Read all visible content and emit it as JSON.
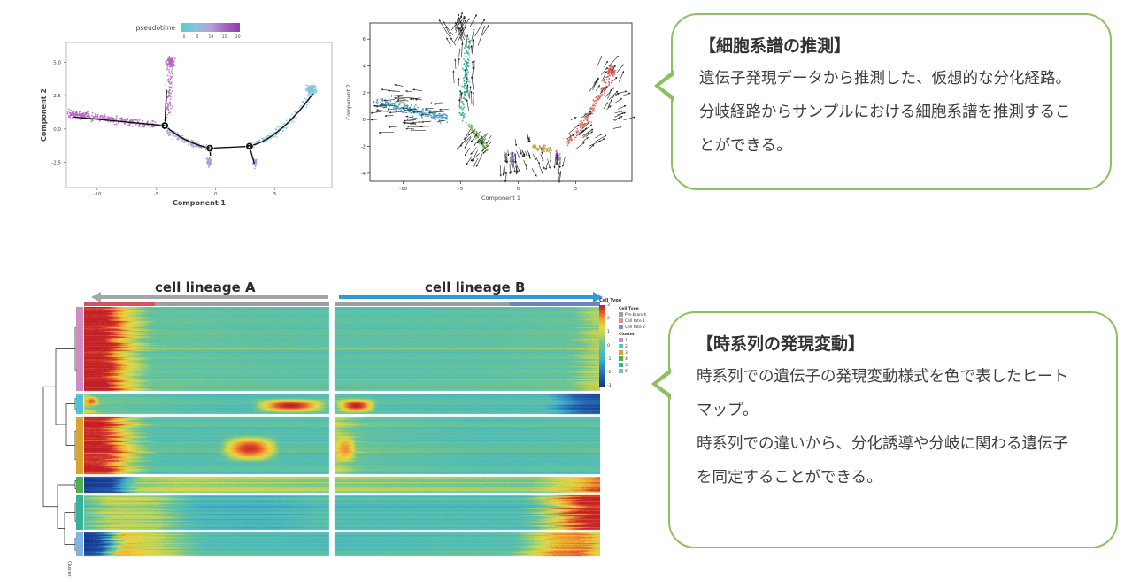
{
  "page": {
    "bg": "#ffffff"
  },
  "chart_data": [
    {
      "type": "scatter",
      "name": "pseudotime-trajectory",
      "xlabel": "Component 1",
      "ylabel": "Component 2",
      "x_ticks": [
        -10,
        -5,
        0,
        5
      ],
      "y_ticks": [
        "5.0",
        "2.5",
        "0.0",
        "-2.5"
      ],
      "y_tick_vals": [
        5.0,
        2.5,
        0.0,
        -2.5
      ],
      "x_range": [
        -12.6,
        9.8
      ],
      "y_range": [
        -4.4,
        6.5
      ],
      "legend": {
        "title": "pseudotime",
        "ticks": [
          "0",
          "5",
          "10",
          "15",
          "20"
        ],
        "colors": [
          "#5ec9d4",
          "#8cc3d9",
          "#b2a3d6",
          "#a364c0",
          "#8e3fae"
        ]
      },
      "clusters": [
        {
          "name": "early-purple-band",
          "color": "#b665c2",
          "kind": "band",
          "from": [
            -12.3,
            1.15
          ],
          "to": [
            -5.1,
            0.3
          ],
          "spread": 0.42,
          "n": 300,
          "bias": 1.4
        },
        {
          "name": "purple-upper-arm",
          "color": "#b665c2",
          "kind": "band",
          "from": [
            -4.05,
            0.9
          ],
          "to": [
            -3.75,
            4.6
          ],
          "spread": 0.4,
          "n": 80,
          "bias": 0.8
        },
        {
          "name": "purple-top-blob",
          "color": "#b665c2",
          "kind": "blob",
          "c": [
            -3.8,
            5.05
          ],
          "sx": 0.5,
          "sy": 0.55,
          "n": 90
        },
        {
          "name": "lavender-curve",
          "color": "#a9a0da",
          "kind": "curve",
          "pts": [
            [
              -4.1,
              -0.15
            ],
            [
              -2.3,
              -1.05
            ],
            [
              -0.5,
              -1.5
            ]
          ],
          "spread": 0.35,
          "n": 150
        },
        {
          "name": "lavender-lower-tuft",
          "color": "#a9a0da",
          "kind": "blob",
          "c": [
            -0.55,
            -2.45
          ],
          "sx": 0.3,
          "sy": 0.55,
          "n": 55
        },
        {
          "name": "lavender-right-tuft",
          "color": "#a9a0da",
          "kind": "blob",
          "c": [
            3.3,
            -2.5
          ],
          "sx": 0.25,
          "sy": 0.5,
          "n": 45
        },
        {
          "name": "cyan-curve",
          "color": "#7fc6dc",
          "kind": "curve",
          "pts": [
            [
              3.0,
              -1.25
            ],
            [
              5.6,
              -0.55
            ],
            [
              7.8,
              2.35
            ]
          ],
          "spread": 0.4,
          "n": 140
        },
        {
          "name": "cyan-top-blob",
          "color": "#7fc6dc",
          "kind": "blob",
          "c": [
            8.05,
            2.95
          ],
          "sx": 0.55,
          "sy": 0.45,
          "n": 200
        }
      ],
      "trajectory": {
        "color": "#111111",
        "segments": [
          {
            "type": "L",
            "pts": [
              [
                -12.0,
                0.9
              ],
              [
                -4.3,
                0.25
              ]
            ]
          },
          {
            "type": "L",
            "pts": [
              [
                -4.3,
                0.25
              ],
              [
                -4.15,
                2.95
              ]
            ]
          },
          {
            "type": "Q",
            "pts": [
              [
                -4.3,
                0.25
              ],
              [
                -2.6,
                -1.05
              ],
              [
                -0.5,
                -1.45
              ]
            ]
          },
          {
            "type": "L",
            "pts": [
              [
                -0.5,
                -1.45
              ],
              [
                2.85,
                -1.3
              ]
            ]
          },
          {
            "type": "Q",
            "pts": [
              [
                2.85,
                -1.3
              ],
              [
                5.4,
                -0.75
              ],
              [
                8.2,
                2.65
              ]
            ]
          },
          {
            "type": "L",
            "pts": [
              [
                2.85,
                -1.3
              ],
              [
                3.25,
                -2.6
              ]
            ]
          },
          {
            "type": "L",
            "pts": [
              [
                -0.5,
                -1.45
              ],
              [
                -0.45,
                -2.0
              ]
            ]
          }
        ]
      },
      "branch_points": [
        {
          "label": "1",
          "x": -4.3,
          "y": 0.25
        },
        {
          "label": "3",
          "x": -0.5,
          "y": -1.45
        },
        {
          "label": "2",
          "x": 2.85,
          "y": -1.3
        }
      ]
    },
    {
      "type": "scatter",
      "name": "rna-velocity",
      "xlabel": "Component 1",
      "ylabel": "Component 2",
      "x_ticks": [
        -10,
        -5,
        0,
        5
      ],
      "y_ticks": [
        6,
        4,
        2,
        0,
        -2,
        -4
      ],
      "x_range": [
        -12.9,
        9.9
      ],
      "y_range": [
        -4.6,
        7.2
      ],
      "clusters": [
        {
          "name": "blue",
          "color": "#3d9bc9",
          "kind": "band",
          "from": [
            -12.4,
            1.35
          ],
          "to": [
            -6.2,
            0.1
          ],
          "spread": 0.5,
          "n": 260,
          "bias": 1
        },
        {
          "name": "teal-arm",
          "color": "#27a88f",
          "kind": "band",
          "from": [
            -4.9,
            0.1
          ],
          "to": [
            -4.3,
            5.9
          ],
          "spread": 0.38,
          "n": 130,
          "bias": 1
        },
        {
          "name": "green",
          "color": "#5aa83f",
          "kind": "band",
          "from": [
            -4.3,
            -0.4
          ],
          "to": [
            -2.7,
            -2.2
          ],
          "spread": 0.33,
          "n": 90,
          "bias": 1
        },
        {
          "name": "purple",
          "color": "#8d7cc9",
          "kind": "blob",
          "c": [
            -0.55,
            -2.85
          ],
          "sx": 0.3,
          "sy": 0.6,
          "n": 55
        },
        {
          "name": "mustard",
          "color": "#c79a38",
          "kind": "band",
          "from": [
            1.3,
            -2.0
          ],
          "to": [
            2.9,
            -2.25
          ],
          "spread": 0.3,
          "n": 70,
          "bias": 1
        },
        {
          "name": "magenta",
          "color": "#c25cab",
          "kind": "blob",
          "c": [
            3.45,
            -2.75
          ],
          "sx": 0.28,
          "sy": 0.65,
          "n": 55
        },
        {
          "name": "red-curve",
          "color": "#d75f55",
          "kind": "curve",
          "pts": [
            [
              4.3,
              -1.75
            ],
            [
              6.3,
              0.1
            ],
            [
              7.9,
              3.2
            ]
          ],
          "spread": 0.45,
          "n": 170
        },
        {
          "name": "red-blob",
          "color": "#d75f55",
          "kind": "blob",
          "c": [
            8.1,
            3.6
          ],
          "sx": 0.5,
          "sy": 0.5,
          "n": 120
        }
      ],
      "arrow_fields": [
        {
          "cx": -9.3,
          "cy": 0.7,
          "rx": 3.3,
          "ry": 1.9,
          "angle": 178,
          "spread": 20,
          "n": 55,
          "len": 1.0
        },
        {
          "cx": -4.6,
          "cy": 3.0,
          "rx": 1.1,
          "ry": 2.9,
          "angle": 92,
          "spread": 18,
          "n": 26,
          "len": 0.9
        },
        {
          "cx": -4.4,
          "cy": 6.2,
          "rx": 1.7,
          "ry": 0.9,
          "angle": 65,
          "spread": 30,
          "n": 14,
          "len": 1.4
        },
        {
          "cx": -5.3,
          "cy": 6.1,
          "rx": 1.1,
          "ry": 0.8,
          "angle": 115,
          "spread": 25,
          "n": 10,
          "len": 1.3
        },
        {
          "cx": -3.4,
          "cy": -1.6,
          "rx": 1.4,
          "ry": 1.3,
          "angle": 232,
          "spread": 25,
          "n": 22,
          "len": 0.9
        },
        {
          "cx": -0.6,
          "cy": -3.1,
          "rx": 1.1,
          "ry": 0.9,
          "angle": 268,
          "spread": 25,
          "n": 14,
          "len": 0.8
        },
        {
          "cx": 1.0,
          "cy": -2.9,
          "rx": 1.7,
          "ry": 0.9,
          "angle": 288,
          "spread": 25,
          "n": 16,
          "len": 0.8
        },
        {
          "cx": 3.4,
          "cy": -3.1,
          "rx": 0.9,
          "ry": 0.9,
          "angle": 262,
          "spread": 25,
          "n": 12,
          "len": 0.9
        },
        {
          "cx": 5.6,
          "cy": -0.9,
          "rx": 1.5,
          "ry": 1.5,
          "angle": 38,
          "spread": 25,
          "n": 20,
          "len": 0.9
        },
        {
          "cx": 7.5,
          "cy": 2.4,
          "rx": 1.4,
          "ry": 1.8,
          "angle": 55,
          "spread": 28,
          "n": 24,
          "len": 0.9
        },
        {
          "cx": 8.7,
          "cy": 0.6,
          "rx": 0.9,
          "ry": 1.6,
          "angle": 22,
          "spread": 25,
          "n": 12,
          "len": 0.9
        },
        {
          "cx": 0.4,
          "cy": -1.7,
          "rx": 2.6,
          "ry": 0.7,
          "angle": 290,
          "spread": 30,
          "n": 10,
          "len": 0.6
        }
      ]
    },
    {
      "type": "heatmap",
      "name": "branched-expression-heatmap",
      "lineage_a_label": "cell lineage A",
      "lineage_b_label": "cell lineage B",
      "lineage_a_color": "#a6a6a6",
      "lineage_b_color": "#2e9bd6",
      "annotation": {
        "left": [
          {
            "color": "#d8515e",
            "w": 0.29
          },
          {
            "color": "#9e9e9e",
            "w": 0.71
          }
        ],
        "right": [
          {
            "color": "#9e9e9e",
            "w": 0.66
          },
          {
            "color": "#6d83bb",
            "w": 0.34
          }
        ]
      },
      "cluster_axis_label": "Cluster",
      "scale_ticks": [
        "3",
        "2",
        "1",
        "0",
        "-1",
        "-2",
        "-3"
      ],
      "legend_title": "Cell Type",
      "cell_type_legend": {
        "title": "Cell Type",
        "items": [
          {
            "label": "Pre-branch",
            "color": "#9e9e9e"
          },
          {
            "label": "Cell fate 1",
            "color": "#e98f93"
          },
          {
            "label": "Cell fate 2",
            "color": "#7c8fc9"
          }
        ]
      },
      "cluster_legend": {
        "title": "Cluster",
        "items": [
          {
            "label": "1",
            "color": "#cd8fc2"
          },
          {
            "label": "2",
            "color": "#4fc3d9"
          },
          {
            "label": "3",
            "color": "#d9a52f"
          },
          {
            "label": "4",
            "color": "#4caf50"
          },
          {
            "label": "5",
            "color": "#35b39a"
          },
          {
            "label": "6",
            "color": "#7fb3e0"
          }
        ]
      },
      "colormap": [
        [
          -3,
          "#16388f"
        ],
        [
          -2,
          "#2a6fb6"
        ],
        [
          -1,
          "#3fb0c9"
        ],
        [
          -0.4,
          "#55bfb0"
        ],
        [
          0.2,
          "#6ec493"
        ],
        [
          0.8,
          "#b8d45c"
        ],
        [
          1.4,
          "#e8d83f"
        ],
        [
          2.0,
          "#f2a333"
        ],
        [
          2.5,
          "#e2572e"
        ],
        [
          3,
          "#c21f28"
        ]
      ],
      "blocks": [
        {
          "h": 95,
          "cluster_color": "#cd8fc2",
          "amp": 0.32,
          "jx": 0.04,
          "left": [
            [
              0,
              3
            ],
            [
              0.1,
              3
            ],
            [
              0.17,
              1.4
            ],
            [
              0.27,
              0
            ],
            [
              1,
              -0.2
            ]
          ],
          "right": [
            [
              0,
              -0.2
            ],
            [
              0.55,
              -0.15
            ],
            [
              0.9,
              0
            ],
            [
              0.97,
              0.7
            ],
            [
              1,
              0.8
            ]
          ],
          "features": []
        },
        {
          "h": 23,
          "cluster_color": "#4fc3d9",
          "amp": 0.4,
          "jx": 0.03,
          "left": [
            [
              0,
              1.2
            ],
            [
              0.05,
              0
            ],
            [
              0.6,
              -0.5
            ],
            [
              1,
              -0.3
            ]
          ],
          "right": [
            [
              0,
              0
            ],
            [
              0.2,
              -0.4
            ],
            [
              0.8,
              -0.5
            ],
            [
              0.92,
              -2.3
            ],
            [
              1,
              -2.6
            ]
          ],
          "features": [
            {
              "x0": 0.68,
              "x1": 1.0,
              "v": 3.2,
              "r0": 0.2,
              "r1": 0.95,
              "side": "left"
            },
            {
              "x0": 0.0,
              "x1": 0.16,
              "v": 3.2,
              "r0": 0.2,
              "r1": 0.95,
              "side": "right"
            },
            {
              "x0": 0.0,
              "x1": 0.06,
              "v": 2.6,
              "r0": 0.1,
              "r1": 0.6,
              "side": "left"
            }
          ]
        },
        {
          "h": 65,
          "cluster_color": "#d9a52f",
          "amp": 0.35,
          "jx": 0.04,
          "left": [
            [
              0,
              3
            ],
            [
              0.09,
              3
            ],
            [
              0.17,
              1.2
            ],
            [
              0.27,
              -0.2
            ],
            [
              1,
              -0.25
            ]
          ],
          "right": [
            [
              0,
              1.0
            ],
            [
              0.1,
              0
            ],
            [
              0.6,
              -0.3
            ],
            [
              1,
              -0.2
            ]
          ],
          "features": [
            {
              "x0": 0.55,
              "x1": 0.8,
              "v": 3,
              "r0": 0.3,
              "r1": 0.8,
              "side": "left"
            },
            {
              "x0": 0.0,
              "x1": 0.08,
              "v": 2.2,
              "r0": 0.3,
              "r1": 0.8,
              "side": "right"
            }
          ]
        },
        {
          "h": 18,
          "cluster_color": "#4caf50",
          "amp": 0.5,
          "jx": 0.03,
          "left": [
            [
              0,
              -3
            ],
            [
              0.13,
              -2.6
            ],
            [
              0.22,
              0.6
            ],
            [
              0.4,
              0.9
            ],
            [
              1,
              0.5
            ]
          ],
          "right": [
            [
              0,
              0.6
            ],
            [
              0.75,
              0.3
            ],
            [
              0.92,
              1.6
            ],
            [
              1,
              2.4
            ]
          ],
          "features": []
        },
        {
          "h": 39,
          "cluster_color": "#35b39a",
          "amp": 0.55,
          "jx": 0.05,
          "left": [
            [
              0,
              -0.2
            ],
            [
              0.1,
              0.9
            ],
            [
              0.28,
              0.7
            ],
            [
              0.45,
              -0.7
            ],
            [
              0.75,
              -0.8
            ],
            [
              1,
              -0.3
            ]
          ],
          "right": [
            [
              0,
              -0.5
            ],
            [
              0.72,
              -0.5
            ],
            [
              0.84,
              1.4
            ],
            [
              0.93,
              3
            ],
            [
              1,
              3
            ]
          ],
          "features": []
        },
        {
          "h": 27,
          "cluster_color": "#7fb3e0",
          "amp": 0.5,
          "jx": 0.04,
          "left": [
            [
              0,
              -3
            ],
            [
              0.08,
              -2.6
            ],
            [
              0.16,
              1.6
            ],
            [
              0.3,
              1.0
            ],
            [
              0.5,
              -0.4
            ],
            [
              1,
              -0.5
            ]
          ],
          "right": [
            [
              0,
              -0.5
            ],
            [
              0.68,
              -0.3
            ],
            [
              0.84,
              1.9
            ],
            [
              0.95,
              2.2
            ],
            [
              1,
              1.2
            ]
          ],
          "features": []
        }
      ]
    }
  ],
  "callouts": [
    {
      "title": "【細胞系譜の推測】",
      "lines": [
        "遺伝子発現データから推測した、仮想的な分化経路。",
        "分岐経路からサンプルにおける細胞系譜を推測するこ",
        "とができる。"
      ],
      "border_color": "#8cc15e"
    },
    {
      "title": "【時系列の発現変動】",
      "lines": [
        "時系列での遺伝子の発現変動様式を色で表したヒート",
        "マップ。",
        "時系列での違いから、分化誘導や分岐に関わる遺伝子",
        "を同定することができる。"
      ],
      "border_color": "#8cc15e"
    }
  ]
}
